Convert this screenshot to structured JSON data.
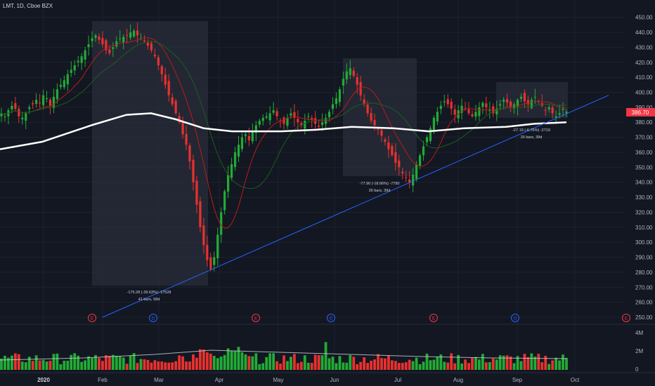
{
  "header": {
    "title": "LMT, 1D, Cboe BZX"
  },
  "price_label": {
    "value": "386.70",
    "color": "#f23645"
  },
  "colors": {
    "background": "#131722",
    "up": "#26a69a",
    "candle_up": "#22ab36",
    "candle_down": "#e8312f",
    "ma_fast": "#b71c1c",
    "ma_mid": "#1b5e20",
    "ma_long": "#ffffff",
    "trendline": "#2962ff",
    "range_box": "#2a2e39"
  },
  "chart_data": {
    "type": "candlestick",
    "title": "LMT, 1D, Cboe BZX",
    "ylim": [
      250,
      455
    ],
    "y_ticks": [
      "450.00",
      "440.00",
      "430.00",
      "420.00",
      "410.00",
      "400.00",
      "390.00",
      "380.00",
      "370.00",
      "360.00",
      "350.00",
      "340.00",
      "330.00",
      "320.00",
      "310.00",
      "300.00",
      "290.00",
      "280.00",
      "270.00",
      "260.00",
      "250.00"
    ],
    "x_labels": [
      "2020",
      "Feb",
      "Mar",
      "Apr",
      "May",
      "Jun",
      "Jul",
      "Aug",
      "Sep",
      "Oct"
    ],
    "volume_ticks": [
      "4M",
      "2M",
      "0"
    ],
    "event_markers": [
      {
        "label": "E",
        "month": "Jan-late",
        "kind": "earnings"
      },
      {
        "label": "D",
        "month": "Feb-end",
        "kind": "dividend"
      },
      {
        "label": "E",
        "month": "Apr-mid",
        "kind": "earnings"
      },
      {
        "label": "D",
        "month": "Jun-start",
        "kind": "dividend"
      },
      {
        "label": "E",
        "month": "Jul-mid",
        "kind": "earnings"
      },
      {
        "label": "D",
        "month": "Aug-end",
        "kind": "dividend"
      },
      {
        "label": "E",
        "month": "Oct-mid",
        "kind": "earnings"
      }
    ],
    "close_series": [
      386,
      384,
      388,
      391,
      389,
      384,
      383,
      386,
      390,
      392,
      395,
      393,
      398,
      396,
      391,
      397,
      402,
      405,
      408,
      412,
      415,
      418,
      421,
      424,
      428,
      432,
      436,
      438,
      435,
      432,
      428,
      426,
      430,
      434,
      436,
      437,
      438,
      440,
      441,
      438,
      436,
      434,
      431,
      428,
      424,
      418,
      412,
      405,
      398,
      392,
      386,
      380,
      372,
      365,
      354,
      340,
      325,
      310,
      298,
      288,
      282,
      290,
      305,
      320,
      334,
      345,
      352,
      360,
      365,
      370,
      372,
      368,
      374,
      378,
      381,
      383,
      384,
      386,
      388,
      384,
      381,
      379,
      383,
      386,
      383,
      380,
      378,
      381,
      384,
      382,
      379,
      377,
      380,
      383,
      387,
      392,
      396,
      402,
      409,
      414,
      416,
      411,
      405,
      398,
      392,
      386,
      381,
      378,
      375,
      371,
      367,
      362,
      358,
      353,
      350,
      346,
      343,
      340,
      345,
      352,
      358,
      364,
      370,
      376,
      383,
      387,
      391,
      394,
      392,
      389,
      385,
      388,
      391,
      389,
      386,
      384,
      387,
      390,
      393,
      390,
      388,
      386,
      389,
      392,
      395,
      393,
      390,
      392,
      395,
      397,
      394,
      392,
      395,
      397,
      394,
      391,
      388,
      390,
      386,
      384,
      386,
      389,
      387
    ],
    "annotations": [
      {
        "text": "-175.28 (-39.63%) -17528",
        "sub": "41 bars, 58d"
      },
      {
        "text": "-77.90 (-18.66%) -7790",
        "sub": "26 bars, 39d"
      },
      {
        "text": "-27.19 (-6.76%) -2719",
        "sub": "26 bars, 39d"
      }
    ]
  }
}
